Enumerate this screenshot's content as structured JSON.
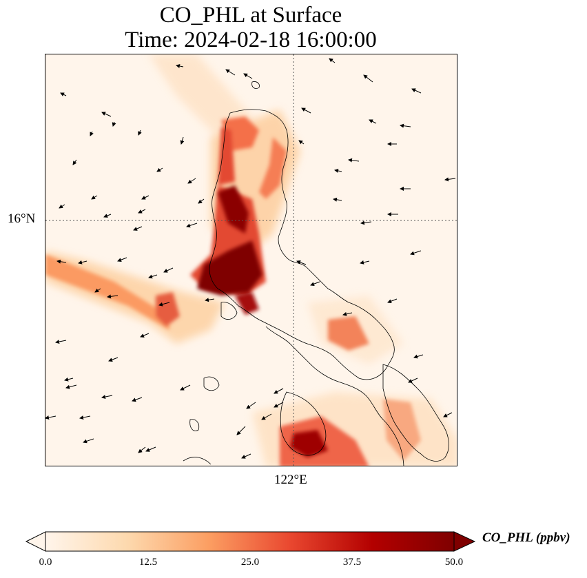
{
  "title_line1": "CO_PHL at Surface",
  "title_line2": "Time: 2024-02-18 16:00:00",
  "map": {
    "lat_label": "16°N",
    "lon_label": "122°E",
    "variable": "CO_PHL",
    "units": "ppbv",
    "gridlines": "dotted"
  },
  "colorbar": {
    "label": "CO_PHL (ppbv)",
    "ticks": [
      "0.0",
      "12.5",
      "25.0",
      "37.5",
      "50.0"
    ],
    "min": 0,
    "max": 50,
    "extend": "both",
    "colormap": "OrRd",
    "colors": [
      "#fff5eb",
      "#fdd9ae",
      "#fc9e62",
      "#e9472f",
      "#b30000",
      "#7f0000"
    ]
  }
}
